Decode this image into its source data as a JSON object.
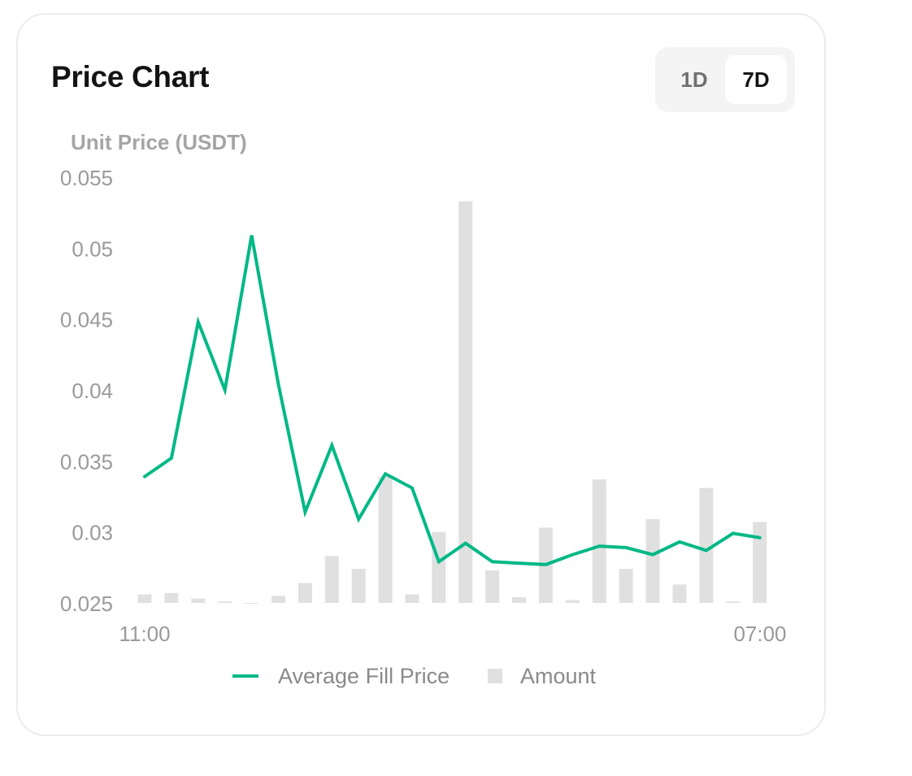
{
  "card": {
    "title": "Price Chart",
    "range_tabs": [
      {
        "label": "1D",
        "selected": false
      },
      {
        "label": "7D",
        "selected": true
      }
    ]
  },
  "colors": {
    "line": "#00b886",
    "bars": "#e0e0e0",
    "axis_text": "#9a9a9a",
    "title": "#141414"
  },
  "chart_data": {
    "type": "bar+line",
    "ylabel": "Unit Price (USDT)",
    "y_ticks": [
      "0.055",
      "0.05",
      "0.045",
      "0.04",
      "0.035",
      "0.03",
      "0.025"
    ],
    "ylim": [
      0.025,
      0.055
    ],
    "x_tick_labels": [
      "11:00",
      "07:00"
    ],
    "legend": [
      {
        "name": "Average Fill Price",
        "icon": "line-swatch"
      },
      {
        "name": "Amount",
        "icon": "square-swatch"
      }
    ],
    "series": [
      {
        "name": "Average Fill Price",
        "type": "line",
        "values": [
          0.0339,
          0.0352,
          0.0448,
          0.04,
          0.0509,
          0.0404,
          0.0314,
          0.0361,
          0.0309,
          0.0341,
          0.0331,
          0.0279,
          0.0292,
          0.0279,
          0.0278,
          0.0277,
          0.0284,
          0.029,
          0.0289,
          0.0284,
          0.0293,
          0.0287,
          0.0299,
          0.0296
        ]
      },
      {
        "name": "Amount",
        "type": "bar",
        "values": [
          0.0256,
          0.0257,
          0.0253,
          0.0251,
          0.025,
          0.0255,
          0.0264,
          0.0283,
          0.0274,
          0.0339,
          0.0256,
          0.03,
          0.0533,
          0.0273,
          0.0254,
          0.0303,
          0.0252,
          0.0337,
          0.0274,
          0.0309,
          0.0263,
          0.0331,
          0.0251,
          0.0307
        ]
      }
    ]
  }
}
